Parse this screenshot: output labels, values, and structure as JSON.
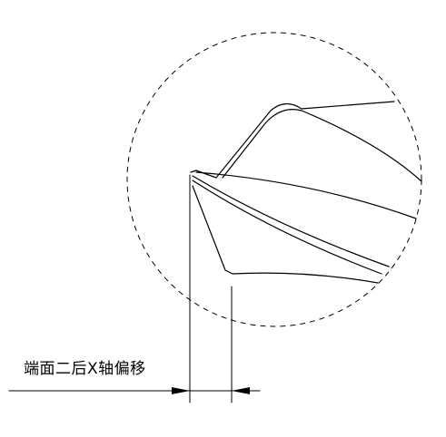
{
  "annotation": {
    "label": "端面二后X轴偏移"
  },
  "colors": {
    "line": "#000000",
    "background": "#ffffff"
  }
}
